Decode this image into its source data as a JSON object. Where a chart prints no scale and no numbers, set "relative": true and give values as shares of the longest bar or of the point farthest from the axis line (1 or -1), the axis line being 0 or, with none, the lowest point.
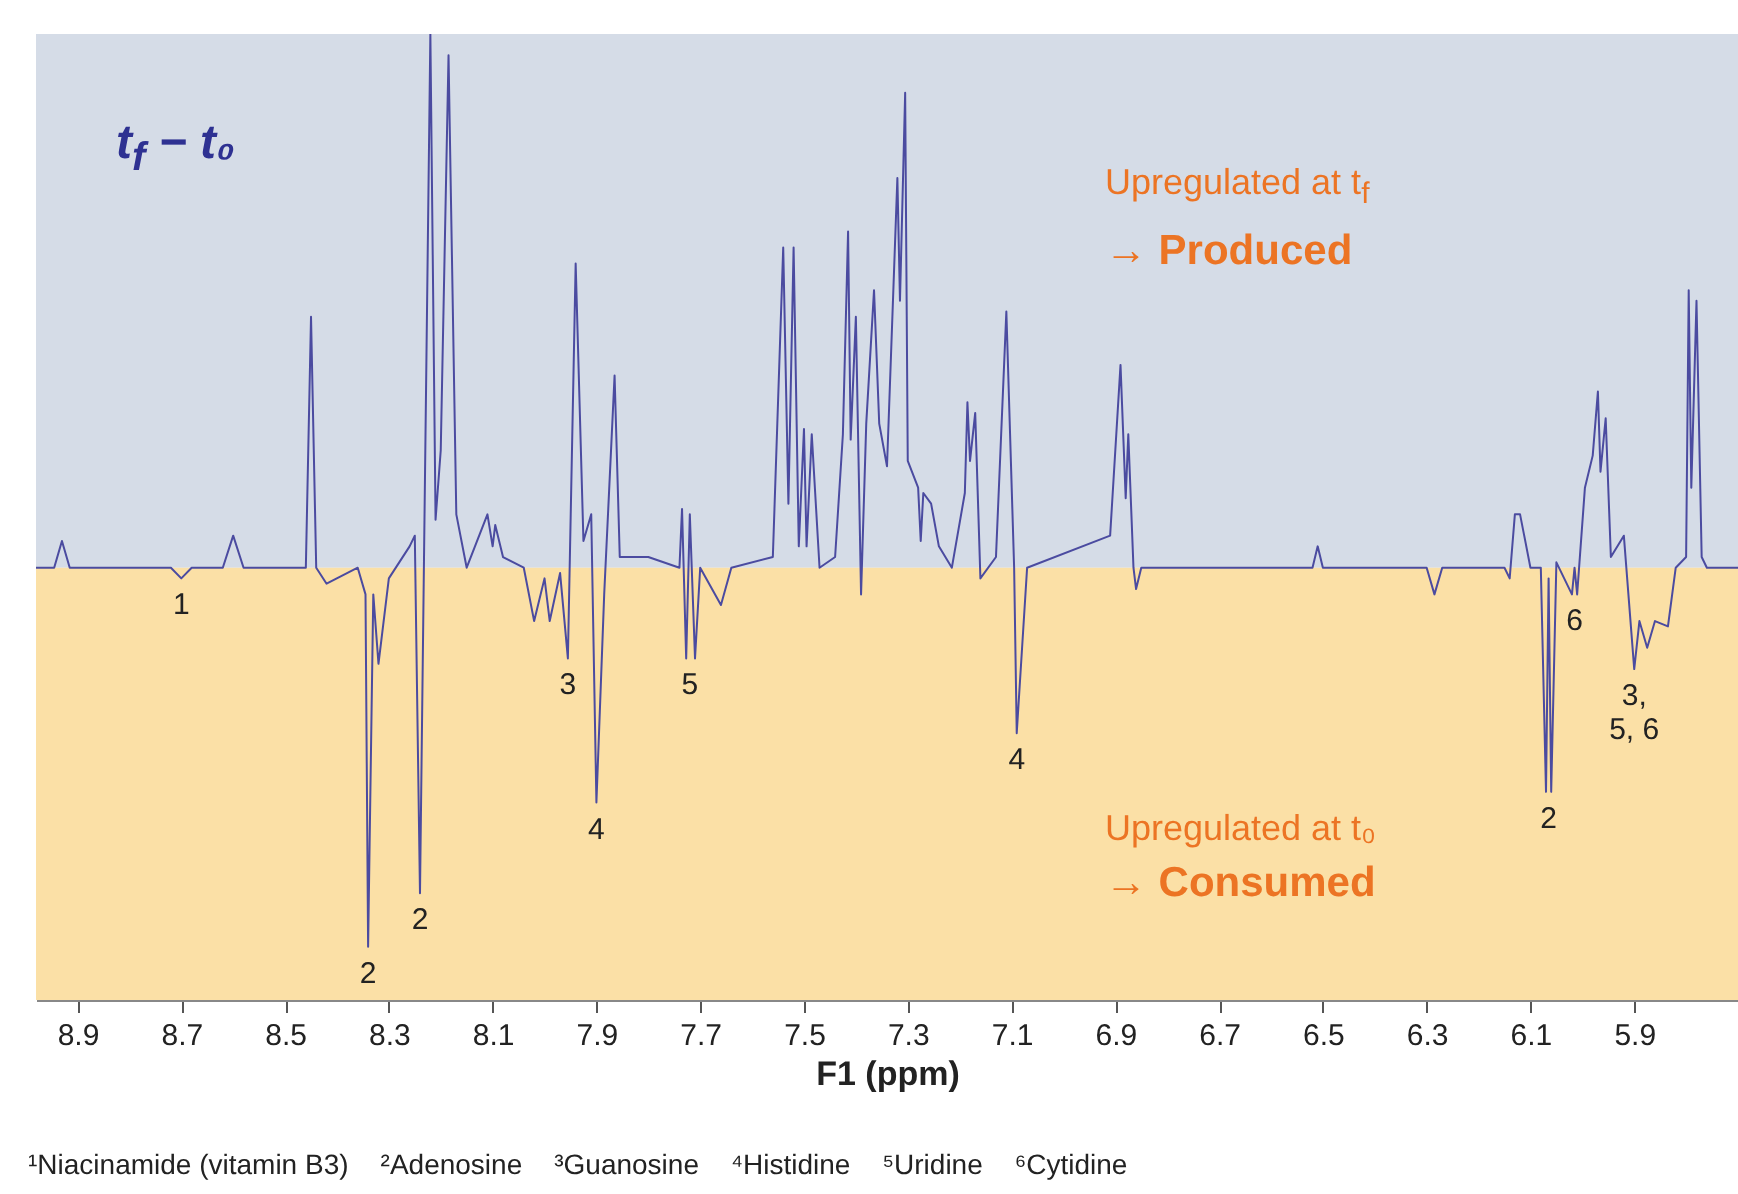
{
  "chart_data": {
    "type": "line",
    "title": "t$_{f}$ − t₀",
    "xlabel": "F1 (ppm)",
    "relative": true,
    "xlim": [
      8.98,
      5.7
    ],
    "xticks": [
      8.9,
      8.7,
      8.5,
      8.3,
      8.1,
      7.9,
      7.7,
      7.5,
      7.3,
      7.1,
      6.9,
      6.7,
      6.5,
      6.3,
      6.1,
      5.9
    ],
    "x": [
      8.98,
      8.945,
      8.93,
      8.915,
      8.72,
      8.7,
      8.68,
      8.62,
      8.6,
      8.58,
      8.46,
      8.45,
      8.44,
      8.42,
      8.36,
      8.345,
      8.34,
      8.33,
      8.32,
      8.3,
      8.26,
      8.25,
      8.24,
      8.23,
      8.22,
      8.21,
      8.2,
      8.185,
      8.17,
      8.15,
      8.11,
      8.1,
      8.095,
      8.08,
      8.04,
      8.02,
      8.0,
      7.99,
      7.97,
      7.955,
      7.94,
      7.925,
      7.91,
      7.9,
      7.885,
      7.865,
      7.855,
      7.8,
      7.74,
      7.735,
      7.727,
      7.72,
      7.71,
      7.7,
      7.66,
      7.64,
      7.56,
      7.54,
      7.53,
      7.52,
      7.51,
      7.5,
      7.495,
      7.485,
      7.47,
      7.44,
      7.425,
      7.415,
      7.41,
      7.4,
      7.39,
      7.38,
      7.365,
      7.355,
      7.34,
      7.32,
      7.315,
      7.305,
      7.3,
      7.28,
      7.275,
      7.27,
      7.255,
      7.24,
      7.215,
      7.19,
      7.185,
      7.18,
      7.17,
      7.16,
      7.13,
      7.11,
      7.095,
      7.09,
      7.07,
      6.91,
      6.89,
      6.88,
      6.875,
      6.865,
      6.86,
      6.85,
      6.52,
      6.51,
      6.5,
      6.3,
      6.285,
      6.27,
      6.15,
      6.14,
      6.13,
      6.12,
      6.1,
      6.08,
      6.07,
      6.065,
      6.06,
      6.05,
      6.02,
      6.015,
      6.01,
      5.995,
      5.98,
      5.97,
      5.965,
      5.955,
      5.945,
      5.92,
      5.9,
      5.89,
      5.875,
      5.86,
      5.835,
      5.82,
      5.8,
      5.795,
      5.79,
      5.78,
      5.77,
      5.76,
      5.7
    ],
    "series": [
      {
        "color": "#4b4ba0",
        "values": [
          0,
          0,
          0.05,
          0,
          0,
          -0.02,
          0,
          0,
          0.06,
          0,
          0,
          0.47,
          0,
          -0.03,
          0,
          -0.05,
          -0.71,
          -0.05,
          -0.18,
          -0.02,
          0.04,
          0.06,
          -0.61,
          0.2,
          1.0,
          0.09,
          0.22,
          0.96,
          0.1,
          0,
          0.1,
          0.04,
          0.08,
          0.02,
          0,
          -0.1,
          -0.02,
          -0.1,
          -0.01,
          -0.17,
          0.57,
          0.05,
          0.1,
          -0.44,
          -0.05,
          0.36,
          0.02,
          0.02,
          0,
          0.11,
          -0.17,
          0.1,
          -0.17,
          0,
          -0.07,
          0,
          0.02,
          0.6,
          0.12,
          0.6,
          0.04,
          0.26,
          0.04,
          0.25,
          0,
          0.02,
          0.25,
          0.63,
          0.24,
          0.47,
          -0.05,
          0.27,
          0.52,
          0.27,
          0.19,
          0.73,
          0.5,
          0.89,
          0.2,
          0.15,
          0.05,
          0.14,
          0.12,
          0.04,
          0,
          0.14,
          0.31,
          0.2,
          0.29,
          -0.02,
          0.02,
          0.48,
          0,
          -0.31,
          0,
          0.06,
          0.38,
          0.13,
          0.25,
          0,
          -0.04,
          0,
          0,
          0.04,
          0,
          0,
          -0.05,
          0,
          0,
          -0.02,
          0.1,
          0.1,
          0,
          0,
          -0.42,
          -0.02,
          -0.42,
          0.01,
          -0.05,
          0,
          -0.05,
          0.15,
          0.21,
          0.33,
          0.18,
          0.28,
          0.02,
          0.06,
          -0.19,
          -0.1,
          -0.15,
          -0.1,
          -0.11,
          0,
          0.02,
          0.52,
          0.15,
          0.5,
          0.02,
          0,
          0
        ]
      }
    ],
    "bands": [
      {
        "axis": "y",
        "from": 0,
        "to": 1.0,
        "color": "#d5dce7",
        "label": "Upregulated at t$_{f}$\n→ Produced"
      },
      {
        "axis": "y",
        "from": -0.81,
        "to": 0,
        "color": "#fbe0a6",
        "label": "Upregulated at t₀\n→ Consumed"
      }
    ],
    "annotations": [
      {
        "text": "1",
        "x": 8.7,
        "y": -0.02
      },
      {
        "text": "2",
        "x": 8.34,
        "y": -0.71
      },
      {
        "text": "2",
        "x": 8.24,
        "y": -0.61
      },
      {
        "text": "3",
        "x": 7.955,
        "y": -0.17
      },
      {
        "text": "4",
        "x": 7.9,
        "y": -0.44
      },
      {
        "text": "5",
        "x": 7.72,
        "y": -0.17
      },
      {
        "text": "4",
        "x": 7.09,
        "y": -0.31
      },
      {
        "text": "2",
        "x": 6.065,
        "y": -0.42
      },
      {
        "text": "6",
        "x": 6.015,
        "y": -0.05
      },
      {
        "text": "3,\n5, 6",
        "x": 5.9,
        "y": -0.19
      },
      "¹Niacinamide (vitamin B3)",
      "²Adenosine",
      "³Guanosine",
      "⁴Histidine",
      "⁵Uridine",
      "⁶Cytidine"
    ]
  }
}
